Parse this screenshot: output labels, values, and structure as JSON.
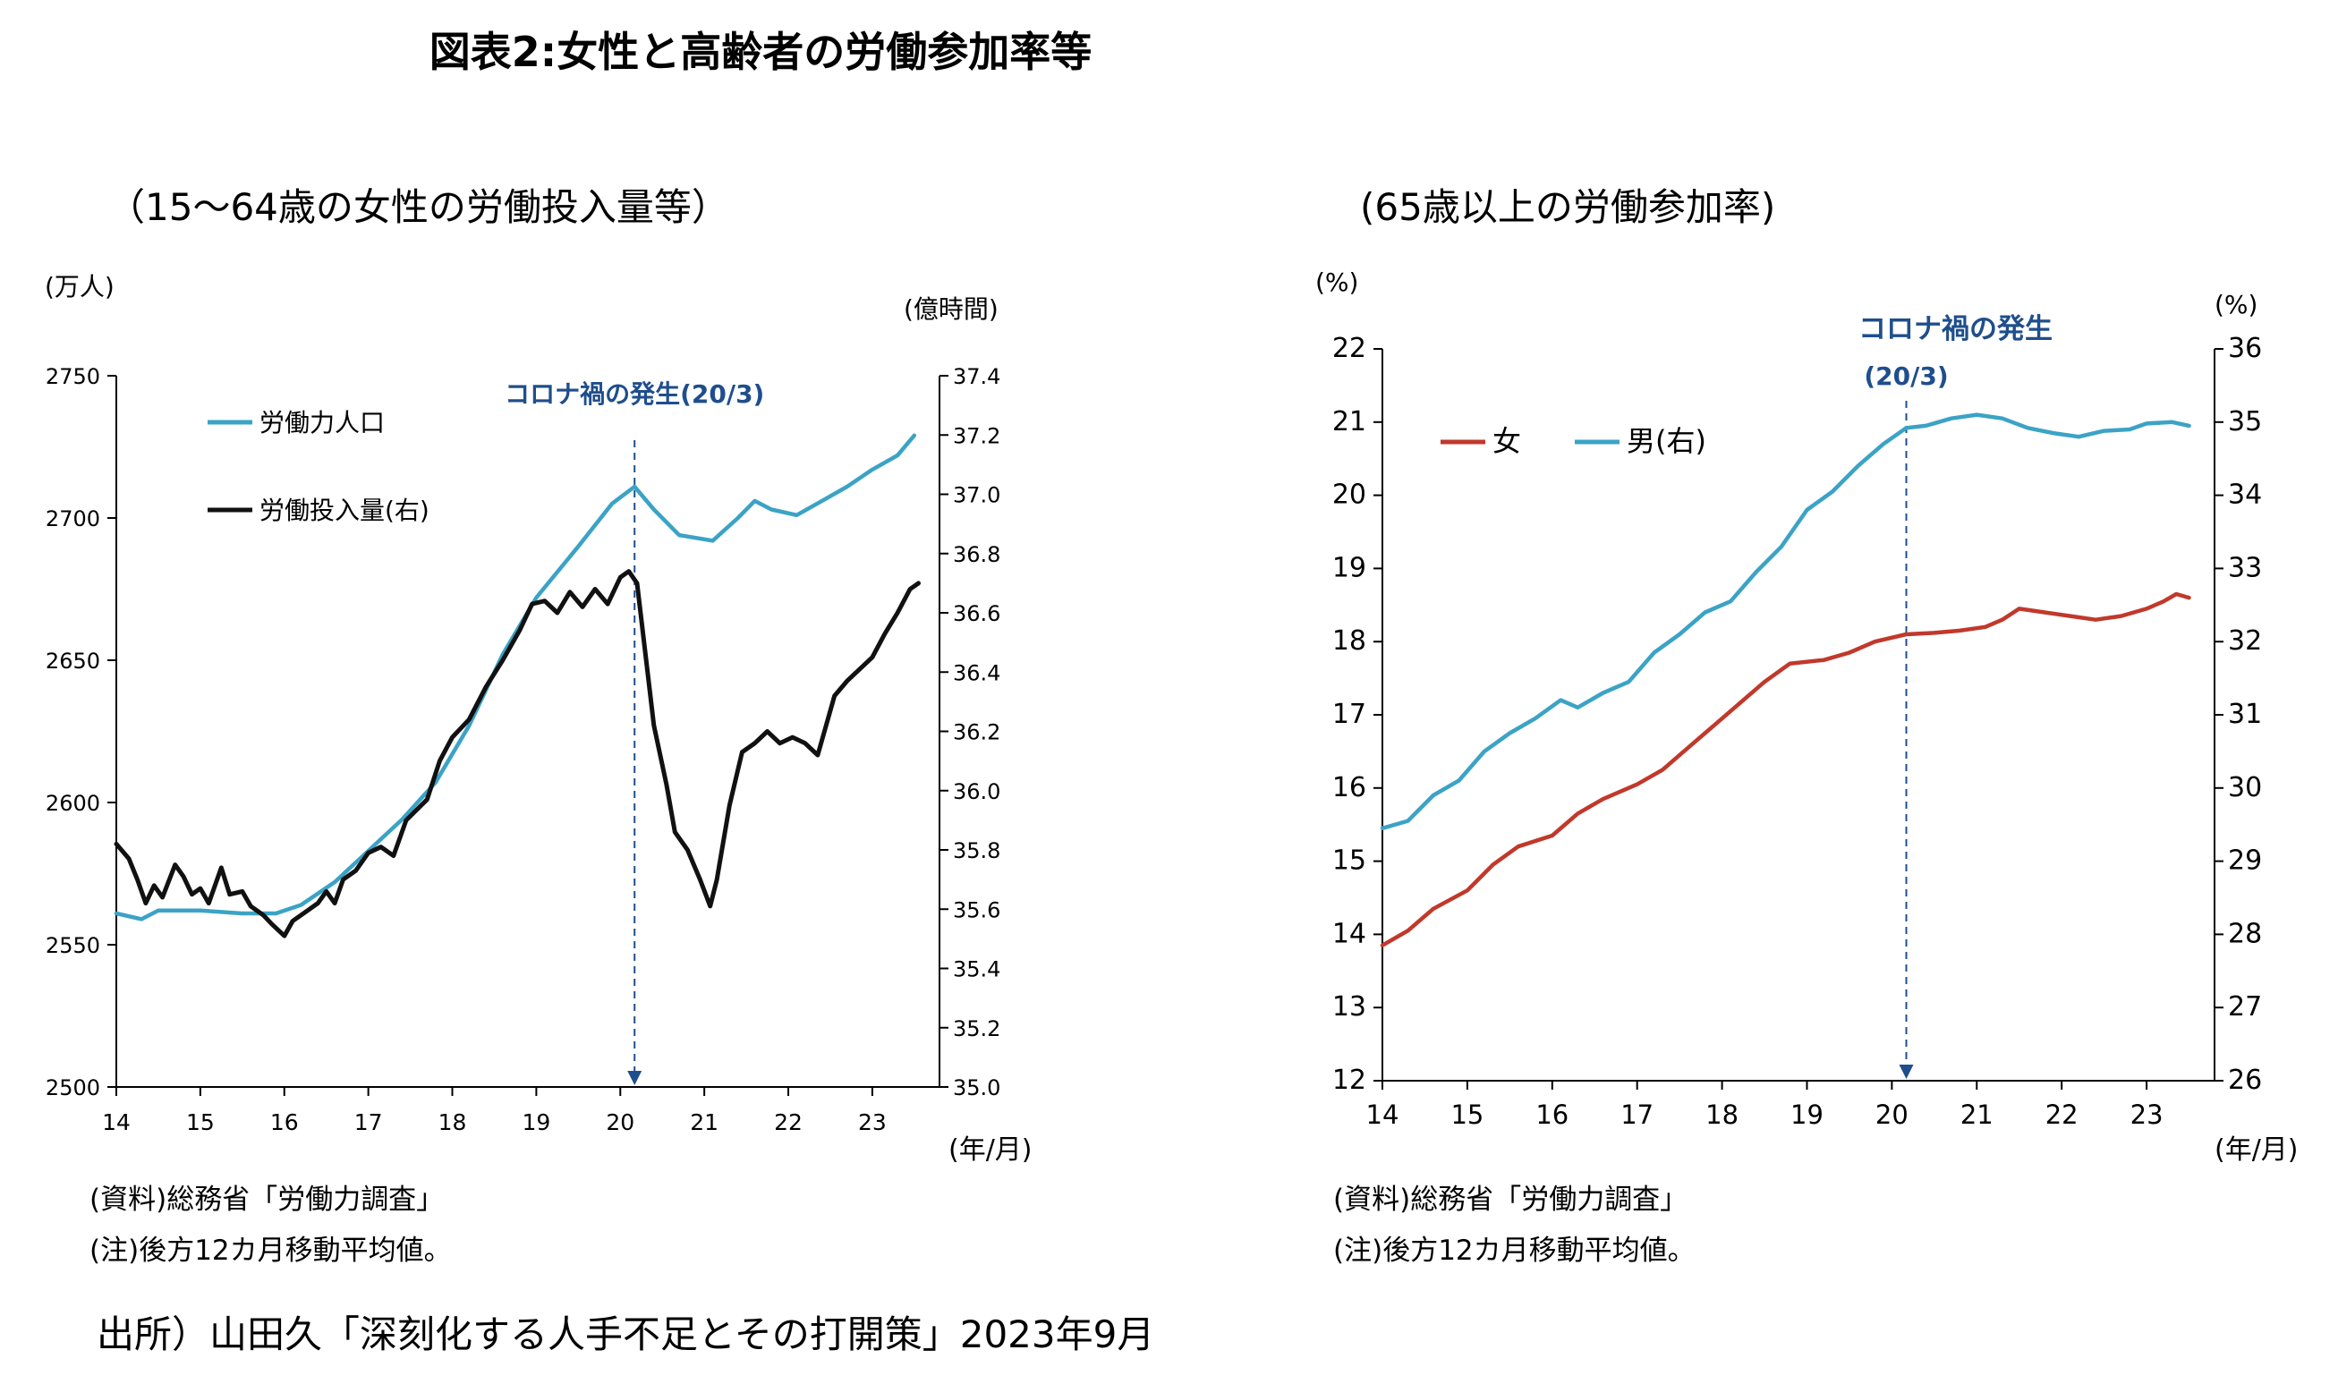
{
  "figure_title": "図表2:女性と高齢者の労働参加率等",
  "source_text": "出所）山田久「深刻化する人手不足とその打開策」2023年9月",
  "colors": {
    "teal": "#3ba3c5",
    "black": "#111111",
    "red": "#c0392b",
    "annotation": "#1f4e8c",
    "axis": "#000000"
  },
  "chart_data": [
    {
      "type": "line",
      "subtitle": "（15〜64歳の女性の労働投入量等）",
      "left_unit": "(万人)",
      "right_unit": "(億時間)",
      "x_unit": "(年/月)",
      "xlim": [
        14,
        23.8
      ],
      "x_ticks": [
        "14",
        "15",
        "16",
        "17",
        "18",
        "19",
        "20",
        "21",
        "22",
        "23"
      ],
      "ylim_left": [
        2500,
        2750
      ],
      "yticks_left": [
        "2500",
        "2550",
        "2600",
        "2650",
        "2700",
        "2750"
      ],
      "ylim_right": [
        35.0,
        37.4
      ],
      "yticks_right": [
        "35.0",
        "35.2",
        "35.4",
        "35.6",
        "35.8",
        "36.0",
        "36.2",
        "36.4",
        "36.6",
        "36.8",
        "37.0",
        "37.2",
        "37.4"
      ],
      "annotation": {
        "text": "コロナ禍の発生(20/3)",
        "x": 20.17
      },
      "series": [
        {
          "name": "労働力人口",
          "axis": "left",
          "color": "#3ba3c5",
          "points": [
            [
              14.0,
              2561
            ],
            [
              14.3,
              2559
            ],
            [
              14.5,
              2562
            ],
            [
              15.0,
              2562
            ],
            [
              15.5,
              2561
            ],
            [
              15.9,
              2561
            ],
            [
              16.2,
              2564
            ],
            [
              16.6,
              2572
            ],
            [
              17.0,
              2583
            ],
            [
              17.4,
              2594
            ],
            [
              17.8,
              2607
            ],
            [
              18.2,
              2627
            ],
            [
              18.6,
              2652
            ],
            [
              19.0,
              2672
            ],
            [
              19.5,
              2690
            ],
            [
              19.9,
              2705
            ],
            [
              20.17,
              2711
            ],
            [
              20.4,
              2703
            ],
            [
              20.7,
              2694
            ],
            [
              21.1,
              2692
            ],
            [
              21.4,
              2700
            ],
            [
              21.6,
              2706
            ],
            [
              21.8,
              2703
            ],
            [
              22.1,
              2701
            ],
            [
              22.4,
              2706
            ],
            [
              22.7,
              2711
            ],
            [
              23.0,
              2717
            ],
            [
              23.3,
              2722
            ],
            [
              23.5,
              2729
            ]
          ]
        },
        {
          "name": "労働投入量(右)",
          "axis": "right",
          "color": "#111111",
          "points": [
            [
              14.0,
              35.82
            ],
            [
              14.15,
              35.77
            ],
            [
              14.25,
              35.7
            ],
            [
              14.35,
              35.62
            ],
            [
              14.45,
              35.68
            ],
            [
              14.55,
              35.64
            ],
            [
              14.7,
              35.75
            ],
            [
              14.8,
              35.71
            ],
            [
              14.9,
              35.65
            ],
            [
              15.0,
              35.67
            ],
            [
              15.1,
              35.62
            ],
            [
              15.25,
              35.74
            ],
            [
              15.35,
              35.65
            ],
            [
              15.5,
              35.66
            ],
            [
              15.6,
              35.61
            ],
            [
              15.75,
              35.58
            ],
            [
              15.85,
              35.55
            ],
            [
              16.0,
              35.51
            ],
            [
              16.1,
              35.56
            ],
            [
              16.25,
              35.59
            ],
            [
              16.4,
              35.62
            ],
            [
              16.5,
              35.66
            ],
            [
              16.6,
              35.62
            ],
            [
              16.7,
              35.7
            ],
            [
              16.85,
              35.73
            ],
            [
              17.0,
              35.79
            ],
            [
              17.15,
              35.81
            ],
            [
              17.3,
              35.78
            ],
            [
              17.45,
              35.9
            ],
            [
              17.7,
              35.97
            ],
            [
              17.85,
              36.1
            ],
            [
              18.0,
              36.18
            ],
            [
              18.2,
              36.24
            ],
            [
              18.4,
              36.35
            ],
            [
              18.6,
              36.44
            ],
            [
              18.8,
              36.54
            ],
            [
              18.95,
              36.63
            ],
            [
              19.1,
              36.64
            ],
            [
              19.25,
              36.6
            ],
            [
              19.4,
              36.67
            ],
            [
              19.55,
              36.62
            ],
            [
              19.7,
              36.68
            ],
            [
              19.85,
              36.63
            ],
            [
              20.0,
              36.72
            ],
            [
              20.1,
              36.74
            ],
            [
              20.2,
              36.7
            ],
            [
              20.3,
              36.46
            ],
            [
              20.4,
              36.22
            ],
            [
              20.55,
              36.02
            ],
            [
              20.65,
              35.86
            ],
            [
              20.8,
              35.8
            ],
            [
              20.95,
              35.7
            ],
            [
              21.07,
              35.61
            ],
            [
              21.15,
              35.7
            ],
            [
              21.3,
              35.95
            ],
            [
              21.45,
              36.13
            ],
            [
              21.6,
              36.16
            ],
            [
              21.75,
              36.2
            ],
            [
              21.9,
              36.16
            ],
            [
              22.05,
              36.18
            ],
            [
              22.2,
              36.16
            ],
            [
              22.35,
              36.12
            ],
            [
              22.55,
              36.32
            ],
            [
              22.7,
              36.37
            ],
            [
              22.85,
              36.41
            ],
            [
              23.0,
              36.45
            ],
            [
              23.15,
              36.53
            ],
            [
              23.3,
              36.6
            ],
            [
              23.45,
              36.68
            ],
            [
              23.55,
              36.7
            ]
          ]
        }
      ]
    },
    {
      "type": "line",
      "subtitle": "(65歳以上の労働参加率)",
      "left_unit": "(%)",
      "right_unit": "(%)",
      "x_unit": "(年/月)",
      "xlim": [
        14,
        23.8
      ],
      "x_ticks": [
        "14",
        "15",
        "16",
        "17",
        "18",
        "19",
        "20",
        "21",
        "22",
        "23"
      ],
      "ylim_left": [
        12,
        22
      ],
      "yticks_left": [
        "12",
        "13",
        "14",
        "15",
        "16",
        "17",
        "18",
        "19",
        "20",
        "21",
        "22"
      ],
      "ylim_right": [
        26,
        36
      ],
      "yticks_right": [
        "26",
        "27",
        "28",
        "29",
        "30",
        "31",
        "32",
        "33",
        "34",
        "35",
        "36"
      ],
      "annotation": {
        "text_line1": "コロナ禍の発生",
        "text_line2": "(20/3)",
        "x": 20.17
      },
      "series": [
        {
          "name": "女",
          "axis": "left",
          "color": "#c0392b",
          "points": [
            [
              14.0,
              13.85
            ],
            [
              14.3,
              14.05
            ],
            [
              14.6,
              14.35
            ],
            [
              15.0,
              14.6
            ],
            [
              15.3,
              14.95
            ],
            [
              15.6,
              15.2
            ],
            [
              16.0,
              15.35
            ],
            [
              16.3,
              15.65
            ],
            [
              16.6,
              15.85
            ],
            [
              17.0,
              16.05
            ],
            [
              17.3,
              16.25
            ],
            [
              17.6,
              16.55
            ],
            [
              17.9,
              16.85
            ],
            [
              18.2,
              17.15
            ],
            [
              18.5,
              17.45
            ],
            [
              18.8,
              17.7
            ],
            [
              19.2,
              17.75
            ],
            [
              19.5,
              17.85
            ],
            [
              19.8,
              18.0
            ],
            [
              20.17,
              18.1
            ],
            [
              20.5,
              18.12
            ],
            [
              20.8,
              18.15
            ],
            [
              21.1,
              18.2
            ],
            [
              21.3,
              18.3
            ],
            [
              21.5,
              18.45
            ],
            [
              21.8,
              18.4
            ],
            [
              22.1,
              18.35
            ],
            [
              22.4,
              18.3
            ],
            [
              22.7,
              18.35
            ],
            [
              23.0,
              18.45
            ],
            [
              23.2,
              18.55
            ],
            [
              23.35,
              18.65
            ],
            [
              23.5,
              18.6
            ]
          ]
        },
        {
          "name": "男(右)",
          "axis": "right",
          "color": "#3ba3c5",
          "points": [
            [
              14.0,
              29.45
            ],
            [
              14.3,
              29.55
            ],
            [
              14.6,
              29.9
            ],
            [
              14.9,
              30.1
            ],
            [
              15.2,
              30.5
            ],
            [
              15.5,
              30.75
            ],
            [
              15.8,
              30.95
            ],
            [
              16.1,
              31.2
            ],
            [
              16.3,
              31.1
            ],
            [
              16.6,
              31.3
            ],
            [
              16.9,
              31.45
            ],
            [
              17.2,
              31.85
            ],
            [
              17.5,
              32.1
            ],
            [
              17.8,
              32.4
            ],
            [
              18.1,
              32.55
            ],
            [
              18.4,
              32.95
            ],
            [
              18.7,
              33.3
            ],
            [
              19.0,
              33.8
            ],
            [
              19.3,
              34.05
            ],
            [
              19.6,
              34.4
            ],
            [
              19.9,
              34.7
            ],
            [
              20.17,
              34.92
            ],
            [
              20.4,
              34.95
            ],
            [
              20.7,
              35.05
            ],
            [
              21.0,
              35.1
            ],
            [
              21.3,
              35.05
            ],
            [
              21.6,
              34.92
            ],
            [
              21.9,
              34.85
            ],
            [
              22.2,
              34.8
            ],
            [
              22.5,
              34.88
            ],
            [
              22.8,
              34.9
            ],
            [
              23.0,
              34.98
            ],
            [
              23.3,
              35.0
            ],
            [
              23.5,
              34.95
            ]
          ]
        }
      ]
    }
  ]
}
